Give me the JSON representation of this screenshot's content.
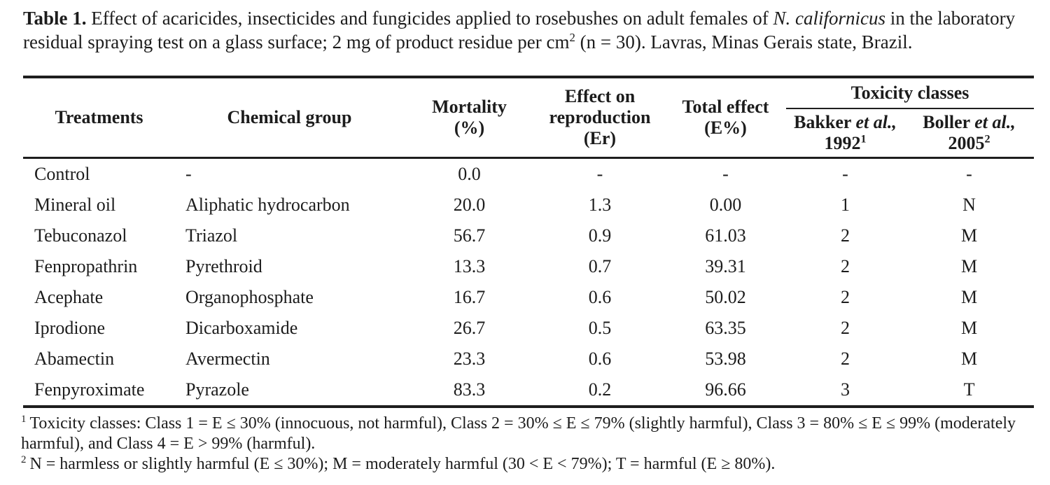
{
  "caption": {
    "label": "Table 1.",
    "part1": "Effect of acaricides, insecticides and fungicides applied to rosebushes on adult females of",
    "species": "N. californicus",
    "part2": "in the laboratory residual spraying test on a glass surface; 2 mg of product residue per cm",
    "sup2": "2",
    "part3": "(n = 30). Lavras, Minas Gerais state, Brazil."
  },
  "table": {
    "headers": {
      "treatments": "Treatments",
      "chemical_group": "Chemical group",
      "mortality_line1": "Mortality",
      "mortality_line2": "(%)",
      "effect_line1": "Effect on",
      "effect_line2": "reproduction",
      "effect_line3": "(Er)",
      "total_line1": "Total effect",
      "total_line2": "(E%)",
      "toxicity_span": "Toxicity classes",
      "bakker_name": "Bakker",
      "bakker_etal": "et al.,",
      "bakker_year": "1992",
      "bakker_sup": "1",
      "boller_name": "Boller",
      "boller_etal": "et al.,",
      "boller_year": "2005",
      "boller_sup": "2"
    },
    "rows": [
      [
        "Control",
        "-",
        "0.0",
        "-",
        "-",
        "-",
        "-"
      ],
      [
        "Mineral oil",
        "Aliphatic hydrocarbon",
        "20.0",
        "1.3",
        "0.00",
        "1",
        "N"
      ],
      [
        "Tebuconazol",
        "Triazol",
        "56.7",
        "0.9",
        "61.03",
        "2",
        "M"
      ],
      [
        "Fenpropathrin",
        "Pyrethroid",
        "13.3",
        "0.7",
        "39.31",
        "2",
        "M"
      ],
      [
        "Acephate",
        "Organophosphate",
        "16.7",
        "0.6",
        "50.02",
        "2",
        "M"
      ],
      [
        "Iprodione",
        "Dicarboxamide",
        "26.7",
        "0.5",
        "63.35",
        "2",
        "M"
      ],
      [
        "Abamectin",
        "Avermectin",
        "23.3",
        "0.6",
        "53.98",
        "2",
        "M"
      ],
      [
        "Fenpyroximate",
        "Pyrazole",
        "83.3",
        "0.2",
        "96.66",
        "3",
        "T"
      ]
    ]
  },
  "footnotes": {
    "fn1_sup": "1",
    "fn1_text": "Toxicity classes: Class 1 = E ≤ 30% (innocuous, not harmful), Class 2 = 30% ≤ E ≤ 79% (slightly harmful), Class 3 = 80% ≤ E ≤ 99% (moderately harmful), and Class 4 = E > 99% (harmful).",
    "fn2_sup": "2",
    "fn2_text": "N = harmless or slightly harmful (E ≤ 30%); M = moderately harmful (30 < E < 79%); T = harmful (E ≥ 80%)."
  },
  "colors": {
    "background": "#ffffff",
    "text": "#1c1c1c",
    "rule": "#1e1e1e"
  },
  "chart_data": {
    "type": "table",
    "title": "Table 1. Effect of acaricides, insecticides and fungicides applied to rosebushes on adult females of N. californicus in the laboratory residual spraying test on a glass surface; 2 mg of product residue per cm2 (n = 30). Lavras, Minas Gerais state, Brazil.",
    "columns": [
      "Treatments",
      "Chemical group",
      "Mortality (%)",
      "Effect on reproduction (Er)",
      "Total effect (E%)",
      "Toxicity classes - Bakker et al., 1992",
      "Toxicity classes - Boller et al., 2005"
    ],
    "rows": [
      [
        "Control",
        "-",
        "0.0",
        "-",
        "-",
        "-",
        "-"
      ],
      [
        "Mineral oil",
        "Aliphatic hydrocarbon",
        "20.0",
        "1.3",
        "0.00",
        "1",
        "N"
      ],
      [
        "Tebuconazol",
        "Triazol",
        "56.7",
        "0.9",
        "61.03",
        "2",
        "M"
      ],
      [
        "Fenpropathrin",
        "Pyrethroid",
        "13.3",
        "0.7",
        "39.31",
        "2",
        "M"
      ],
      [
        "Acephate",
        "Organophosphate",
        "16.7",
        "0.6",
        "50.02",
        "2",
        "M"
      ],
      [
        "Iprodione",
        "Dicarboxamide",
        "26.7",
        "0.5",
        "63.35",
        "2",
        "M"
      ],
      [
        "Abamectin",
        "Avermectin",
        "23.3",
        "0.6",
        "53.98",
        "2",
        "M"
      ],
      [
        "Fenpyroximate",
        "Pyrazole",
        "83.3",
        "0.2",
        "96.66",
        "3",
        "T"
      ]
    ]
  }
}
